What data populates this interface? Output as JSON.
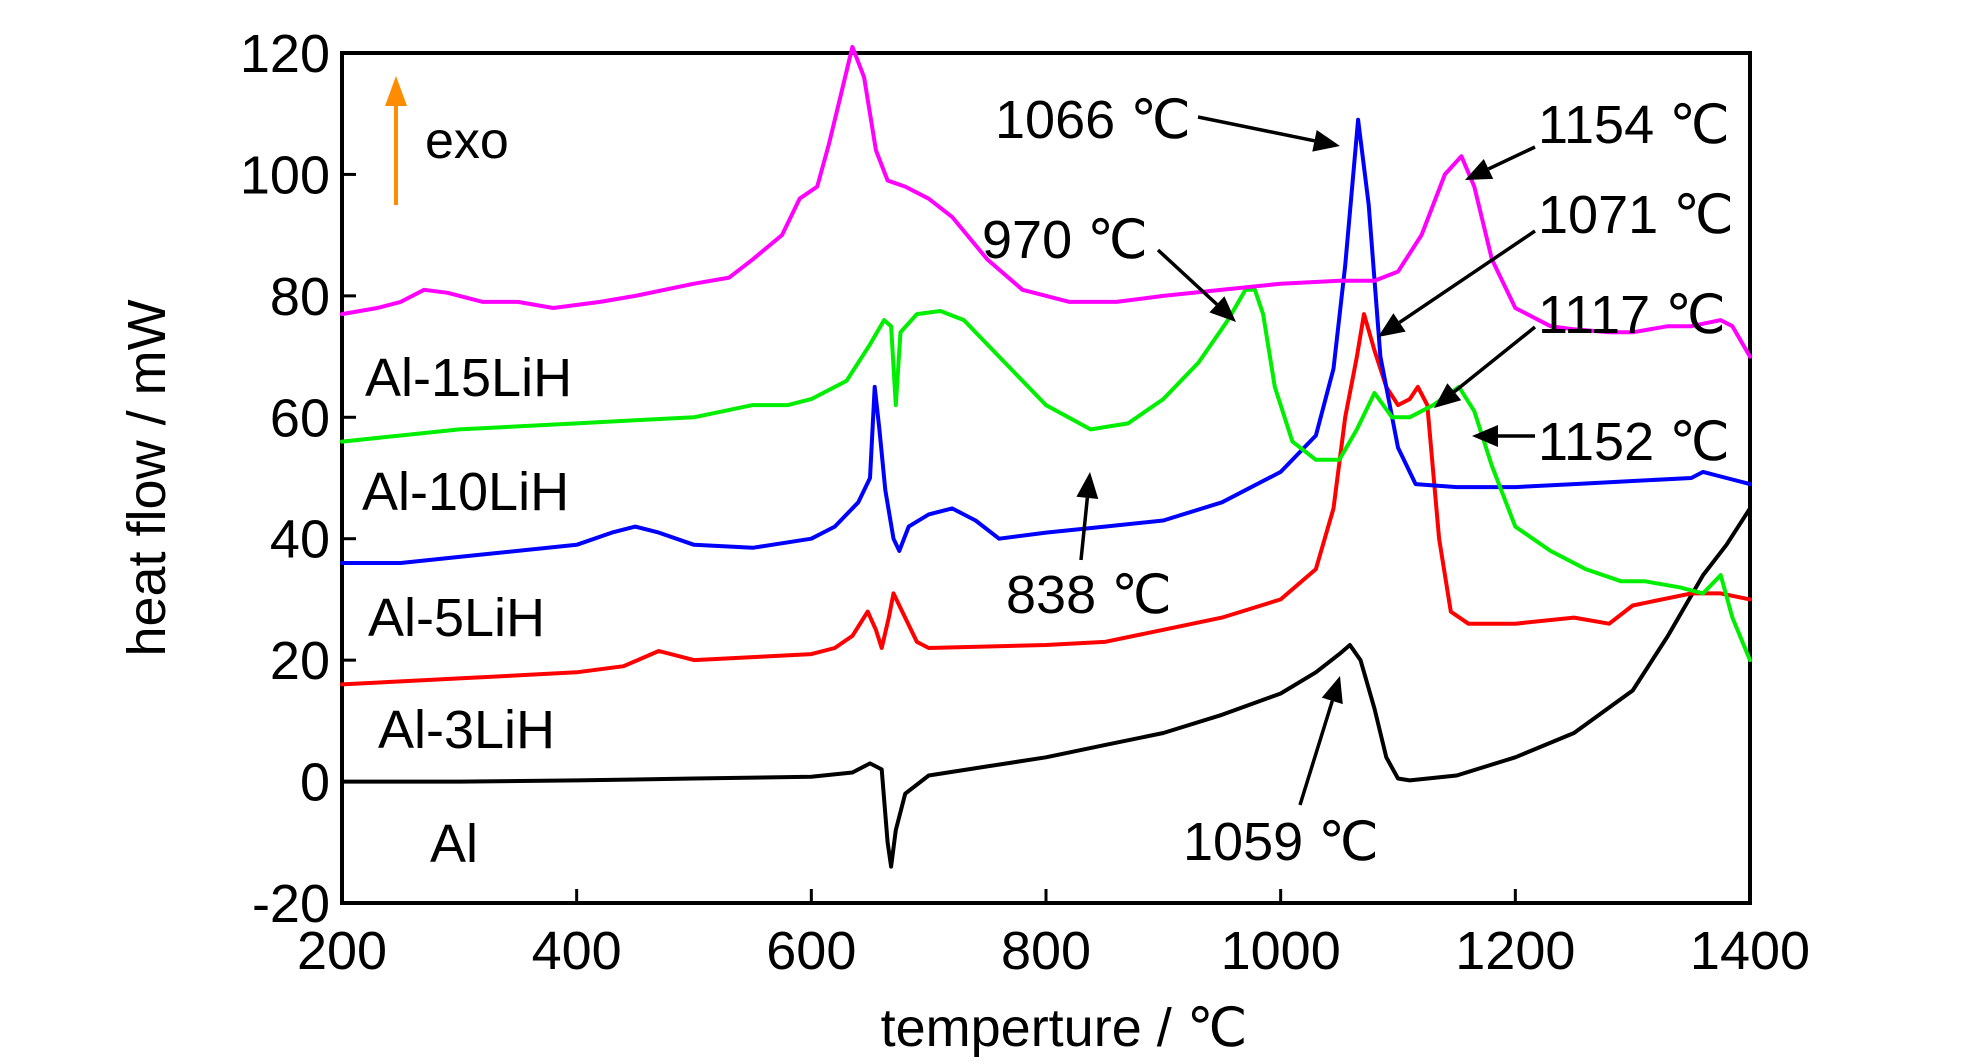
{
  "chart_data": {
    "type": "line",
    "xlabel": "temperture / ℃",
    "ylabel": "heat flow / mW",
    "xlim": [
      200,
      1400
    ],
    "ylim": [
      -20,
      120
    ],
    "xticks": [
      "200",
      "400",
      "600",
      "800",
      "1000",
      "1200",
      "1400"
    ],
    "yticks": [
      "120",
      "100",
      "80",
      "60",
      "40",
      "20",
      "0",
      "-20"
    ],
    "grid": false,
    "exo_label": "exo",
    "series": [
      {
        "name": "Al",
        "color": "#000000",
        "points": [
          [
            200,
            0
          ],
          [
            300,
            0
          ],
          [
            400,
            0.2
          ],
          [
            500,
            0.5
          ],
          [
            600,
            0.8
          ],
          [
            635,
            1.5
          ],
          [
            650,
            3
          ],
          [
            660,
            2
          ],
          [
            665,
            -10
          ],
          [
            668,
            -14
          ],
          [
            672,
            -8
          ],
          [
            680,
            -2
          ],
          [
            700,
            1
          ],
          [
            750,
            2.5
          ],
          [
            800,
            4
          ],
          [
            850,
            6
          ],
          [
            900,
            8
          ],
          [
            950,
            11
          ],
          [
            1000,
            14.5
          ],
          [
            1030,
            18
          ],
          [
            1050,
            21
          ],
          [
            1059,
            22.5
          ],
          [
            1068,
            20
          ],
          [
            1080,
            12
          ],
          [
            1090,
            4
          ],
          [
            1100,
            0.5
          ],
          [
            1110,
            0.2
          ],
          [
            1150,
            1
          ],
          [
            1200,
            4
          ],
          [
            1250,
            8
          ],
          [
            1300,
            15
          ],
          [
            1330,
            24
          ],
          [
            1360,
            34
          ],
          [
            1380,
            39
          ],
          [
            1400,
            45
          ]
        ]
      },
      {
        "name": "Al-3LiH",
        "color": "#ff0000",
        "points": [
          [
            200,
            16
          ],
          [
            250,
            16.5
          ],
          [
            300,
            17
          ],
          [
            400,
            18
          ],
          [
            440,
            19
          ],
          [
            470,
            21.5
          ],
          [
            500,
            20
          ],
          [
            550,
            20.5
          ],
          [
            600,
            21
          ],
          [
            620,
            22
          ],
          [
            635,
            24
          ],
          [
            648,
            28
          ],
          [
            655,
            25
          ],
          [
            660,
            22
          ],
          [
            666,
            27
          ],
          [
            670,
            31
          ],
          [
            675,
            29
          ],
          [
            690,
            23
          ],
          [
            700,
            22
          ],
          [
            800,
            22.5
          ],
          [
            850,
            23
          ],
          [
            900,
            25
          ],
          [
            950,
            27
          ],
          [
            1000,
            30
          ],
          [
            1030,
            35
          ],
          [
            1045,
            45
          ],
          [
            1055,
            60
          ],
          [
            1065,
            70
          ],
          [
            1071,
            77
          ],
          [
            1080,
            71
          ],
          [
            1090,
            65
          ],
          [
            1100,
            62
          ],
          [
            1110,
            63
          ],
          [
            1117,
            65
          ],
          [
            1125,
            62
          ],
          [
            1135,
            40
          ],
          [
            1145,
            28
          ],
          [
            1160,
            26
          ],
          [
            1200,
            26
          ],
          [
            1250,
            27
          ],
          [
            1280,
            26
          ],
          [
            1300,
            29
          ],
          [
            1350,
            31
          ],
          [
            1375,
            31
          ],
          [
            1400,
            30
          ]
        ]
      },
      {
        "name": "Al-5LiH",
        "color": "#0000ff",
        "points": [
          [
            200,
            36
          ],
          [
            250,
            36
          ],
          [
            300,
            37
          ],
          [
            400,
            39
          ],
          [
            430,
            41
          ],
          [
            450,
            42
          ],
          [
            470,
            41
          ],
          [
            500,
            39
          ],
          [
            550,
            38.5
          ],
          [
            600,
            40
          ],
          [
            620,
            42
          ],
          [
            640,
            46
          ],
          [
            650,
            50
          ],
          [
            654,
            65
          ],
          [
            658,
            58
          ],
          [
            663,
            48
          ],
          [
            670,
            40
          ],
          [
            675,
            38
          ],
          [
            683,
            42
          ],
          [
            700,
            44
          ],
          [
            720,
            45
          ],
          [
            740,
            43
          ],
          [
            760,
            40
          ],
          [
            800,
            41
          ],
          [
            850,
            42
          ],
          [
            900,
            43
          ],
          [
            950,
            46
          ],
          [
            1000,
            51
          ],
          [
            1030,
            57
          ],
          [
            1045,
            68
          ],
          [
            1055,
            85
          ],
          [
            1066,
            109
          ],
          [
            1075,
            95
          ],
          [
            1085,
            70
          ],
          [
            1100,
            55
          ],
          [
            1115,
            49
          ],
          [
            1150,
            48.5
          ],
          [
            1200,
            48.5
          ],
          [
            1250,
            49
          ],
          [
            1300,
            49.5
          ],
          [
            1350,
            50
          ],
          [
            1360,
            51
          ],
          [
            1380,
            50
          ],
          [
            1400,
            49
          ]
        ]
      },
      {
        "name": "Al-10LiH",
        "color": "#00ee00",
        "points": [
          [
            200,
            56
          ],
          [
            250,
            57
          ],
          [
            300,
            58
          ],
          [
            400,
            59
          ],
          [
            450,
            59.5
          ],
          [
            500,
            60
          ],
          [
            525,
            61
          ],
          [
            550,
            62
          ],
          [
            580,
            62
          ],
          [
            600,
            63
          ],
          [
            630,
            66
          ],
          [
            650,
            72
          ],
          [
            662,
            76
          ],
          [
            668,
            75
          ],
          [
            672,
            62
          ],
          [
            676,
            74
          ],
          [
            690,
            77
          ],
          [
            710,
            77.5
          ],
          [
            730,
            76
          ],
          [
            760,
            70
          ],
          [
            800,
            62
          ],
          [
            838,
            58
          ],
          [
            870,
            59
          ],
          [
            900,
            63
          ],
          [
            930,
            69
          ],
          [
            955,
            76
          ],
          [
            970,
            81
          ],
          [
            978,
            81
          ],
          [
            985,
            77
          ],
          [
            995,
            65
          ],
          [
            1010,
            56
          ],
          [
            1030,
            53
          ],
          [
            1050,
            53
          ],
          [
            1065,
            58
          ],
          [
            1080,
            64
          ],
          [
            1095,
            60
          ],
          [
            1110,
            60
          ],
          [
            1130,
            62
          ],
          [
            1152,
            65
          ],
          [
            1165,
            61
          ],
          [
            1180,
            52
          ],
          [
            1200,
            42
          ],
          [
            1230,
            38
          ],
          [
            1260,
            35
          ],
          [
            1290,
            33
          ],
          [
            1310,
            33
          ],
          [
            1340,
            32
          ],
          [
            1360,
            31
          ],
          [
            1375,
            34
          ],
          [
            1385,
            27
          ],
          [
            1400,
            20
          ]
        ]
      },
      {
        "name": "Al-15LiH",
        "color": "#ff00ff",
        "points": [
          [
            200,
            77
          ],
          [
            230,
            78
          ],
          [
            250,
            79
          ],
          [
            270,
            81
          ],
          [
            290,
            80.5
          ],
          [
            320,
            79
          ],
          [
            350,
            79
          ],
          [
            380,
            78
          ],
          [
            420,
            79
          ],
          [
            450,
            80
          ],
          [
            500,
            82
          ],
          [
            530,
            83
          ],
          [
            550,
            86
          ],
          [
            575,
            90
          ],
          [
            590,
            96
          ],
          [
            605,
            98
          ],
          [
            615,
            105
          ],
          [
            625,
            113
          ],
          [
            635,
            121
          ],
          [
            645,
            116
          ],
          [
            655,
            104
          ],
          [
            665,
            99
          ],
          [
            680,
            98
          ],
          [
            700,
            96
          ],
          [
            720,
            93
          ],
          [
            750,
            86
          ],
          [
            780,
            81
          ],
          [
            820,
            79
          ],
          [
            860,
            79
          ],
          [
            900,
            80
          ],
          [
            950,
            81
          ],
          [
            1000,
            82
          ],
          [
            1050,
            82.5
          ],
          [
            1080,
            82.5
          ],
          [
            1100,
            84
          ],
          [
            1120,
            90
          ],
          [
            1140,
            100
          ],
          [
            1154,
            103
          ],
          [
            1165,
            98
          ],
          [
            1180,
            86
          ],
          [
            1200,
            78
          ],
          [
            1230,
            75
          ],
          [
            1250,
            74.5
          ],
          [
            1280,
            74
          ],
          [
            1300,
            74
          ],
          [
            1330,
            75
          ],
          [
            1350,
            75
          ],
          [
            1375,
            76
          ],
          [
            1385,
            75
          ],
          [
            1400,
            70
          ]
        ]
      }
    ],
    "series_labels": [
      "Al-15LiH",
      "Al-10LiH",
      "Al-5LiH",
      "Al-3LiH",
      "Al"
    ],
    "annotations": [
      {
        "text": "1066 ℃",
        "x": 1066,
        "y": 109
      },
      {
        "text": "1154 ℃",
        "x": 1154,
        "y": 103
      },
      {
        "text": "970 ℃",
        "x": 970,
        "y": 81
      },
      {
        "text": "1071 ℃",
        "x": 1071,
        "y": 77
      },
      {
        "text": "1117 ℃",
        "x": 1117,
        "y": 65
      },
      {
        "text": "1152 ℃",
        "x": 1152,
        "y": 65
      },
      {
        "text": "838 ℃",
        "x": 838,
        "y": 58
      },
      {
        "text": "1059 ℃",
        "x": 1059,
        "y": 22.5
      }
    ]
  }
}
